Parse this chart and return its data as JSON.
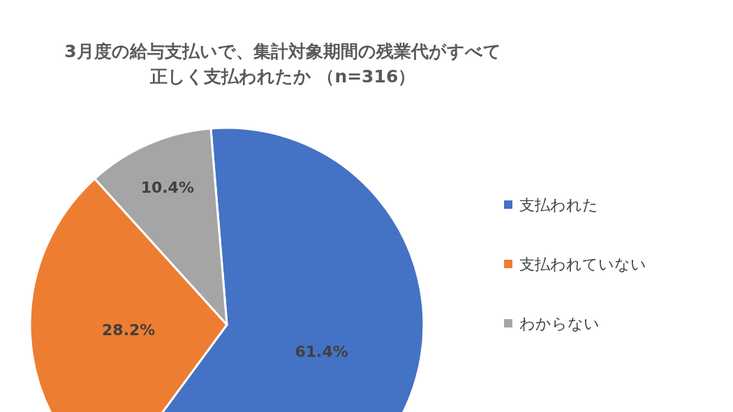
{
  "chart_data": {
    "type": "pie",
    "title": "3月度の給与支払いで、集計対象期間の残業代がすべて正しく支払われたか （n=316）",
    "categories": [
      "支払われた",
      "支払われていない",
      "わからない"
    ],
    "values": [
      61.4,
      28.2,
      10.4
    ],
    "value_labels": [
      "61.4%",
      "28.2%",
      "10.4%"
    ],
    "colors": [
      "#4472c4",
      "#ed7d31",
      "#a5a5a5"
    ],
    "legend": "right"
  }
}
